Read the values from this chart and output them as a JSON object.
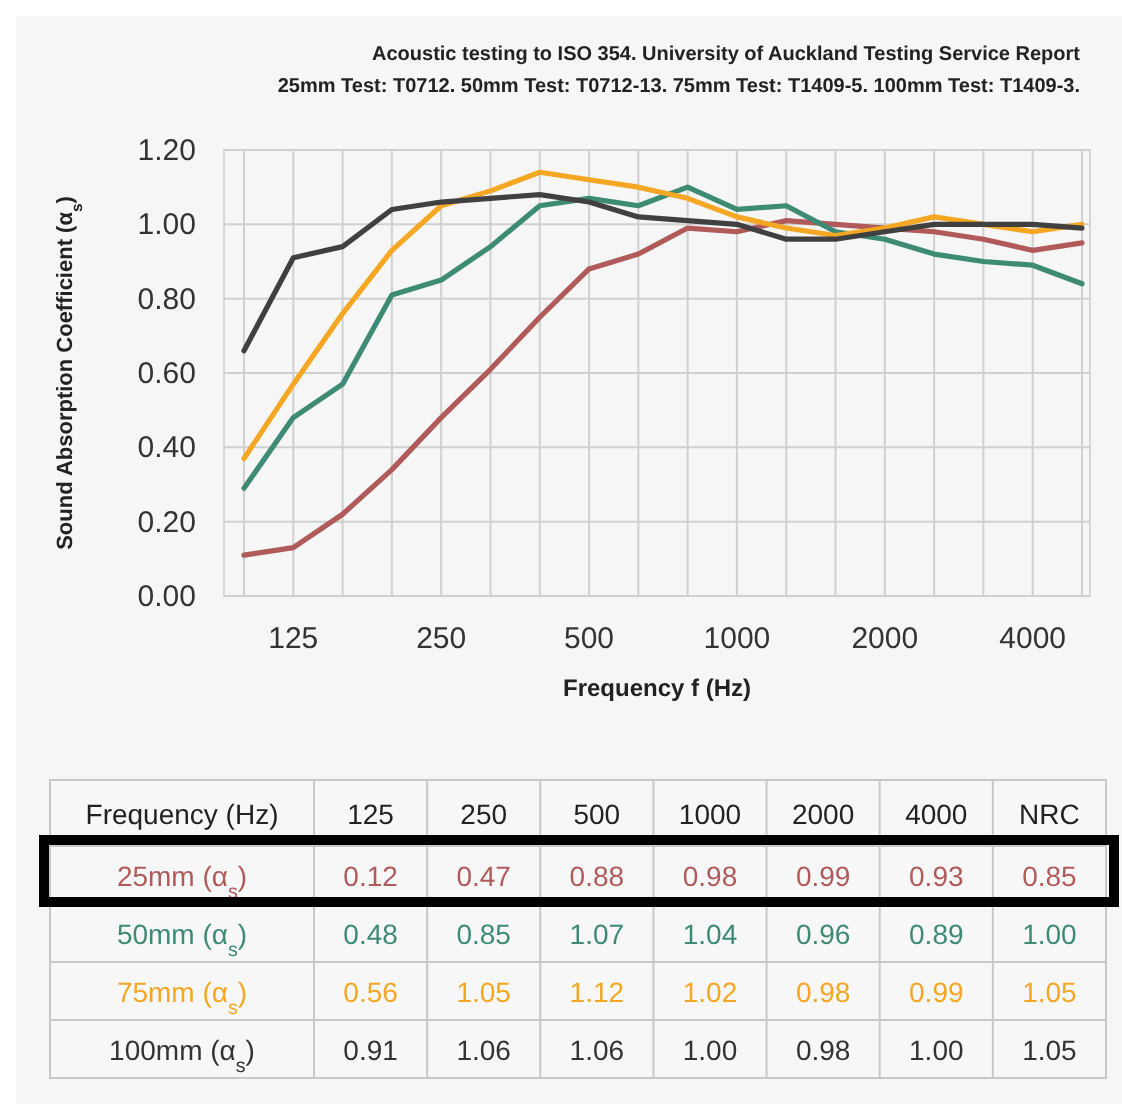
{
  "chart_data": [
    {
      "type": "line",
      "title": "Acoustic testing to ISO 354. University of Auckland Testing Service Report",
      "subtitle": "25mm Test: T0712. 50mm Test: T0712-13. 75mm Test: T1409-5. 100mm Test: T1409-3.",
      "xlabel": "Frequency f (Hz)",
      "ylabel": "Sound Absorption Coefficient (α$_{s}$)",
      "categories": [
        null,
        "125",
        null,
        null,
        "250",
        null,
        null,
        "500",
        null,
        null,
        "1000",
        null,
        null,
        "2000",
        null,
        null,
        "4000",
        null
      ],
      "series": [
        {
          "color": "#b05a5a",
          "values": [
            0.11,
            0.13,
            0.22,
            0.34,
            0.48,
            0.61,
            0.75,
            0.88,
            0.92,
            0.99,
            0.98,
            1.01,
            1.0,
            0.99,
            0.98,
            0.96,
            0.93,
            0.95
          ]
        },
        {
          "color": "#3d8a75",
          "values": [
            0.29,
            0.48,
            0.57,
            0.81,
            0.85,
            0.94,
            1.05,
            1.07,
            1.05,
            1.1,
            1.04,
            1.05,
            0.98,
            0.96,
            0.92,
            0.9,
            0.89,
            0.84
          ]
        },
        {
          "color": "#f5a623",
          "values": [
            0.37,
            0.57,
            0.76,
            0.93,
            1.05,
            1.09,
            1.14,
            1.12,
            1.1,
            1.07,
            1.02,
            0.99,
            0.97,
            0.99,
            1.02,
            1.0,
            0.98,
            1.0
          ]
        },
        {
          "color": "#404040",
          "values": [
            0.66,
            0.91,
            0.94,
            1.04,
            1.06,
            1.07,
            1.08,
            1.06,
            1.02,
            1.01,
            1.0,
            0.96,
            0.96,
            0.98,
            1.0,
            1.0,
            1.0,
            0.99
          ]
        }
      ],
      "ylim": [
        0,
        1.2
      ],
      "yticks": [
        {
          "value": 0,
          "label": "0.00"
        },
        {
          "value": 0.2,
          "label": "0.20"
        },
        {
          "value": 0.4,
          "label": "0.40"
        },
        {
          "value": 0.6,
          "label": "0.60"
        },
        {
          "value": 0.8,
          "label": "0.80"
        },
        {
          "value": 1,
          "label": "1.00"
        },
        {
          "value": 1.2,
          "label": "1.20"
        }
      ],
      "grid": true
    },
    {
      "type": "heatmap",
      "xlabel": "Frequency (Hz)",
      "categories": [
        "125",
        "250",
        "500",
        "1000",
        "2000",
        "4000",
        "NRC"
      ],
      "y_categories": [
        "25mm (α$_{s}$)",
        "50mm (α$_{s}$)",
        "75mm (α$_{s}$)",
        "100mm (α$_{s}$)"
      ],
      "colors": [
        "#b05a5a",
        "#3d8a75",
        "#f5a623",
        "#333333"
      ],
      "cells": [
        [
          0.12,
          0.47,
          0.88,
          0.98,
          0.99,
          0.93,
          0.85
        ],
        [
          0.48,
          0.85,
          1.07,
          1.04,
          0.96,
          0.89,
          1.0
        ],
        [
          0.56,
          1.05,
          1.12,
          1.02,
          0.98,
          0.99,
          1.05
        ],
        [
          0.91,
          1.06,
          1.06,
          1.0,
          0.98,
          1.0,
          1.05
        ]
      ],
      "cell_labels": [
        [
          "0.12",
          "0.47",
          "0.88",
          "0.98",
          "0.99",
          "0.93",
          "0.85"
        ],
        [
          "0.48",
          "0.85",
          "1.07",
          "1.04",
          "0.96",
          "0.89",
          "1.00"
        ],
        [
          "0.56",
          "1.05",
          "1.12",
          "1.02",
          "0.98",
          "0.99",
          "1.05"
        ],
        [
          "0.91",
          "1.06",
          "1.06",
          "1.00",
          "0.98",
          "1.00",
          "1.05"
        ]
      ],
      "data_labels": true
    }
  ]
}
